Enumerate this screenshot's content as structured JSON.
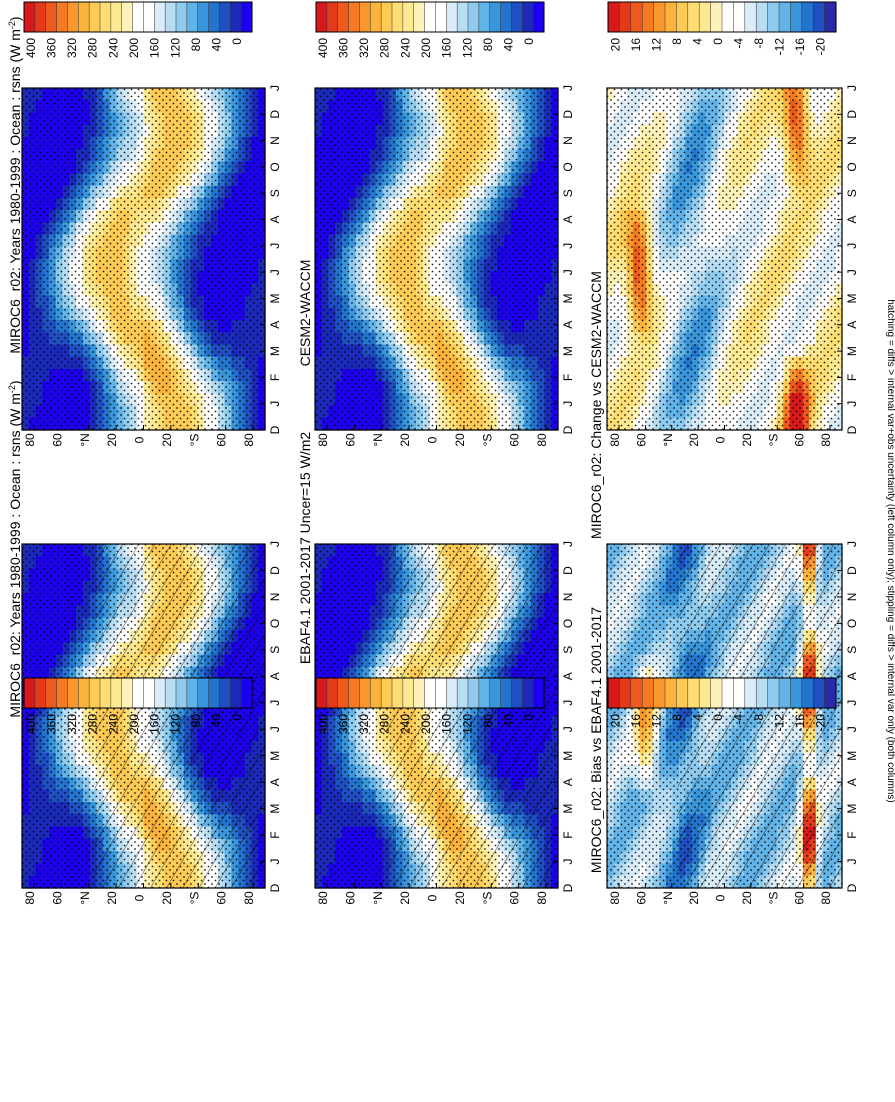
{
  "figure": {
    "footnote": "hatching = diffs > internal var+obs uncertainty (left column only); stippling = diffs > internal var only (both columns)",
    "orientation": "rotated 90 degrees clockwise"
  },
  "colors": {
    "full_scale": [
      "#d7191c",
      "#e33a1c",
      "#ee5a1e",
      "#f57a24",
      "#f9972e",
      "#fbb33c",
      "#fdcb55",
      "#fedd72",
      "#fee993",
      "#fff2b8",
      "#ffffff",
      "#ffffff",
      "#d9ecf8",
      "#b8dcf2",
      "#8ecbee",
      "#62b3e7",
      "#3a96db",
      "#2274cd",
      "#1f4fc1",
      "#1b2aba",
      "#1e00f0"
    ],
    "diff_scale": [
      "#d7191c",
      "#e33a1c",
      "#ee5a1e",
      "#f57a24",
      "#f9972e",
      "#fbb33c",
      "#fdcb55",
      "#fedd72",
      "#fee993",
      "#fff2b8",
      "#ffffff",
      "#ffffff",
      "#d9ecf8",
      "#b8dcf2",
      "#8ecbee",
      "#62b3e7",
      "#3a96db",
      "#2274cd",
      "#1f4fc1",
      "#2a2aa8"
    ]
  },
  "chart_data": [
    {
      "type": "heatmap",
      "title": "MIROC6_r02: Years 1980-1999 : Ocean : rsns (W m-2)",
      "title_main": "MIROC6_r02: Years 1980-1999 : Ocean : rsns (W m",
      "title_sup": "-2",
      "title_end": ")",
      "x_ticks": [
        "D",
        "J",
        "F",
        "M",
        "A",
        "M",
        "J",
        "J",
        "A",
        "S",
        "O",
        "N",
        "D",
        "J"
      ],
      "y_ticks": [
        "80",
        "60",
        "°N",
        "20",
        "0",
        "20",
        "°S",
        "60",
        "80"
      ],
      "colorbar_labels": [
        "400",
        "360",
        "320",
        "280",
        "240",
        "200",
        "160",
        "120",
        "80",
        "40",
        "0"
      ],
      "units": "W m-2",
      "lat_range": [
        -90,
        90
      ],
      "months": 14,
      "hatching": true
    },
    {
      "type": "heatmap",
      "title": "MIROC6_r02: Years 1980-1999 : Ocean : rsns (W m-2)",
      "title_main": "MIROC6_r02: Years 1980-1999 : Ocean : rsns (W m",
      "title_sup": "-2",
      "title_end": ")",
      "x_ticks": [
        "D",
        "J",
        "F",
        "M",
        "A",
        "M",
        "J",
        "J",
        "A",
        "S",
        "O",
        "N",
        "D",
        "J"
      ],
      "y_ticks": [
        "80",
        "60",
        "°N",
        "20",
        "0",
        "20",
        "°S",
        "60",
        "80"
      ],
      "colorbar_labels": [
        "400",
        "360",
        "320",
        "280",
        "240",
        "200",
        "160",
        "120",
        "80",
        "40",
        "0"
      ],
      "units": "W m-2",
      "lat_range": [
        -90,
        90
      ],
      "months": 14,
      "hatching": false
    },
    {
      "type": "heatmap",
      "title": "EBAF4.1 2001-2017 Uncer=15 W/m2",
      "x_ticks": [
        "D",
        "J",
        "F",
        "M",
        "A",
        "M",
        "J",
        "J",
        "A",
        "S",
        "O",
        "N",
        "D",
        "J"
      ],
      "y_ticks": [
        "80",
        "60",
        "°N",
        "20",
        "0",
        "20",
        "°S",
        "60",
        "80"
      ],
      "colorbar_labels": [
        "400",
        "360",
        "320",
        "280",
        "240",
        "200",
        "160",
        "120",
        "80",
        "40",
        "0"
      ],
      "lat_range": [
        -90,
        90
      ],
      "months": 14,
      "hatching": true
    },
    {
      "type": "heatmap",
      "title": "CESM2-WACCM",
      "x_ticks": [
        "D",
        "J",
        "F",
        "M",
        "A",
        "M",
        "J",
        "J",
        "A",
        "S",
        "O",
        "N",
        "D",
        "J"
      ],
      "y_ticks": [
        "80",
        "60",
        "°N",
        "20",
        "0",
        "20",
        "°S",
        "60",
        "80"
      ],
      "colorbar_labels": [
        "400",
        "360",
        "320",
        "280",
        "240",
        "200",
        "160",
        "120",
        "80",
        "40",
        "0"
      ],
      "lat_range": [
        -90,
        90
      ],
      "months": 14,
      "hatching": false
    },
    {
      "type": "heatmap",
      "title": "MIROC6_r02: Bias vs EBAF4.1 2001-2017",
      "x_ticks": [
        "D",
        "J",
        "F",
        "M",
        "A",
        "M",
        "J",
        "J",
        "A",
        "S",
        "O",
        "N",
        "D",
        "J"
      ],
      "y_ticks": [
        "80",
        "60",
        "°N",
        "20",
        "0",
        "20",
        "°S",
        "60",
        "80"
      ],
      "colorbar_labels": [
        "20",
        "16",
        "12",
        "8",
        "4",
        "0",
        "-4",
        "-8",
        "-12",
        "-16",
        "-20"
      ],
      "lat_range": [
        -90,
        90
      ],
      "months": 14,
      "hatching": true
    },
    {
      "type": "heatmap",
      "title": "MIROC6_r02: Change vs CESM2-WACCM",
      "x_ticks": [
        "D",
        "J",
        "F",
        "M",
        "A",
        "M",
        "J",
        "J",
        "A",
        "S",
        "O",
        "N",
        "D",
        "J"
      ],
      "y_ticks": [
        "80",
        "60",
        "°N",
        "20",
        "0",
        "20",
        "°S",
        "60",
        "80"
      ],
      "colorbar_labels": [
        "20",
        "16",
        "12",
        "8",
        "4",
        "0",
        "-4",
        "-8",
        "-12",
        "-16",
        "-20"
      ],
      "lat_range": [
        -90,
        90
      ],
      "months": 14,
      "hatching": false
    }
  ]
}
